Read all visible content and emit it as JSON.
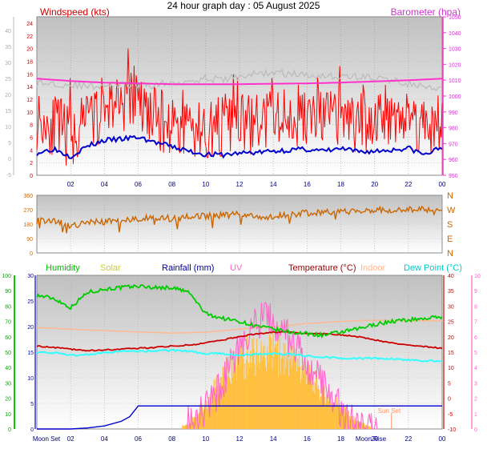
{
  "title": "24 hour graph day : 05 August 2025",
  "colors": {
    "wind": "#ff0000",
    "avg_wind": "#0000cc",
    "baro": "#ff33cc",
    "baro_line": "#cc44cc",
    "direction": "#cc6600",
    "humidity": "#00cc00",
    "solar": "#ffc040",
    "solar_text": "#cccc33",
    "rainfall": "#0000cc",
    "uv": "#ff66cc",
    "temperature": "#cc0000",
    "indoor": "#ffb890",
    "dewpoint": "#33ffff",
    "moon": "#ff9966"
  },
  "time_ticks": [
    "02",
    "04",
    "06",
    "08",
    "10",
    "12",
    "14",
    "16",
    "18",
    "20",
    "22",
    "00"
  ],
  "chart_data": [
    {
      "type": "line",
      "panel": "wind",
      "labels": {
        "left": "Windspeed (kts)",
        "right": "Barometer (hpa)"
      },
      "left_ticks": [
        "24",
        "22",
        "20",
        "18",
        "16",
        "14",
        "12",
        "10",
        "8",
        "6",
        "4",
        "2",
        "0"
      ],
      "left_range": [
        0,
        25
      ],
      "outer_ticks": [
        "40",
        "35",
        "30",
        "25",
        "20",
        "15",
        "10",
        "5",
        "0",
        "-5"
      ],
      "right_ticks": [
        "1050",
        "1040",
        "1030",
        "1020",
        "1010",
        "1000",
        "990",
        "980",
        "970",
        "960",
        "950"
      ],
      "right_range": [
        950,
        1050
      ],
      "x_range_hours": [
        0,
        24
      ],
      "series": [
        {
          "name": "Windspeed",
          "x": [
            0,
            1,
            2,
            3,
            4,
            5,
            6,
            7,
            8,
            9,
            10,
            11,
            12,
            13,
            14,
            15,
            16,
            17,
            18,
            19,
            20,
            21,
            22,
            23,
            24
          ],
          "y": [
            9,
            8,
            6,
            8,
            11,
            12,
            11,
            9,
            8,
            7,
            7,
            8,
            8,
            8,
            9,
            9,
            9,
            9,
            9,
            8,
            9,
            10,
            9,
            8,
            8
          ]
        },
        {
          "name": "Average wind",
          "x": [
            0,
            1,
            2,
            3,
            4,
            5,
            6,
            7,
            8,
            9,
            10,
            11,
            12,
            13,
            14,
            15,
            16,
            17,
            18,
            19,
            20,
            21,
            22,
            23,
            24
          ],
          "y": [
            3.5,
            4.2,
            3.0,
            4.6,
            5.5,
            5.7,
            6.0,
            5.2,
            4.5,
            3.8,
            3.3,
            3.2,
            3.5,
            3.6,
            3.8,
            4.0,
            4.1,
            3.8,
            4.2,
            3.7,
            3.8,
            4.0,
            4.3,
            3.2,
            4.5
          ]
        },
        {
          "name": "Gust trace",
          "x": [
            0,
            1,
            2,
            3,
            4,
            5,
            6,
            7,
            8,
            9,
            10,
            11,
            12,
            13,
            14,
            15,
            16,
            17,
            18,
            19,
            20,
            21,
            22,
            23,
            24
          ],
          "y": [
            14.5,
            14.5,
            14.3,
            14.0,
            14.2,
            14.3,
            14.0,
            14.3,
            14.5,
            15.0,
            15.3,
            15.0,
            15.6,
            16.0,
            16.2,
            16.0,
            15.8,
            15.8,
            15.5,
            15.6,
            15.3,
            15.0,
            14.5,
            13.8,
            13.4
          ]
        },
        {
          "name": "Barometer",
          "x": [
            0,
            2,
            4,
            6,
            8,
            10,
            12,
            14,
            16,
            18,
            20,
            22,
            24
          ],
          "y": [
            1011,
            1009.5,
            1008.5,
            1008,
            1007.5,
            1007.5,
            1007.5,
            1007.8,
            1008,
            1008.5,
            1009.2,
            1010,
            1011
          ]
        }
      ]
    },
    {
      "type": "line",
      "panel": "direction",
      "left_ticks": [
        "360",
        "270",
        "180",
        "90",
        "0"
      ],
      "y_range": [
        0,
        360
      ],
      "compass": [
        "N",
        "W",
        "S",
        "E",
        "N"
      ],
      "series": [
        {
          "name": "Wind direction",
          "x": [
            0,
            1,
            2,
            3,
            4,
            5,
            6,
            7,
            8,
            9,
            10,
            11,
            12,
            13,
            14,
            15,
            16,
            17,
            18,
            19,
            20,
            21,
            22,
            23,
            24
          ],
          "y": [
            200,
            205,
            165,
            190,
            195,
            205,
            215,
            220,
            215,
            225,
            230,
            235,
            240,
            225,
            225,
            240,
            250,
            255,
            255,
            265,
            270,
            265,
            270,
            270,
            250
          ]
        }
      ]
    },
    {
      "type": "area",
      "panel": "multi",
      "labels": [
        "Humidity",
        "Solar",
        "Rainfall (mm)",
        "UV",
        "Temperature (°C)",
        "Indoor",
        "Dew Point (°C)"
      ],
      "humidity_ticks": [
        "100",
        "90",
        "80",
        "70",
        "60",
        "50",
        "40",
        "30",
        "20",
        "10",
        "0"
      ],
      "rain_ticks": [
        "30",
        "25",
        "20",
        "15",
        "10",
        "5",
        "0"
      ],
      "temp_ticks": [
        "40",
        "35",
        "30",
        "25",
        "20",
        "15",
        "10",
        "5",
        "0",
        "-5",
        "-10"
      ],
      "uv_ticks": [
        "10",
        "9",
        "8",
        "7",
        "6",
        "5",
        "4",
        "3",
        "2",
        "1",
        "0"
      ],
      "annotations": [
        "Moon Set",
        "Moon Rise",
        "Sun Set"
      ],
      "series": [
        {
          "name": "Humidity",
          "x": [
            0,
            1,
            2,
            3,
            4,
            5,
            6,
            7,
            8,
            9,
            10,
            11,
            12,
            13,
            14,
            15,
            16,
            17,
            18,
            19,
            20,
            21,
            22,
            23,
            24
          ],
          "y": [
            87,
            85,
            79,
            89,
            91,
            92,
            93,
            92,
            92,
            89,
            75,
            72,
            70,
            67,
            65,
            63,
            62,
            61,
            63,
            65,
            68,
            70,
            71,
            72,
            73
          ]
        },
        {
          "name": "Temperature",
          "x": [
            0,
            1,
            2,
            3,
            4,
            5,
            6,
            7,
            8,
            9,
            10,
            11,
            12,
            13,
            14,
            15,
            16,
            17,
            18,
            19,
            20,
            21,
            22,
            23,
            24
          ],
          "y": [
            17,
            16.5,
            16,
            15.5,
            15.7,
            16,
            16.3,
            16.5,
            17,
            17.3,
            18,
            19,
            20,
            21,
            21.5,
            21.5,
            21,
            21,
            20.7,
            20,
            19,
            18,
            17.3,
            16.8,
            16.3
          ]
        },
        {
          "name": "Dew Point",
          "x": [
            0,
            1,
            2,
            3,
            4,
            5,
            6,
            7,
            8,
            9,
            10,
            11,
            12,
            13,
            14,
            15,
            16,
            17,
            18,
            19,
            20,
            21,
            22,
            23,
            24
          ],
          "y": [
            15,
            14.8,
            14,
            14.2,
            14.8,
            15.2,
            15.3,
            15.4,
            15.6,
            15.3,
            14.5,
            14.5,
            14,
            14.3,
            14.5,
            14.3,
            13.8,
            13.4,
            13,
            13,
            13,
            12.8,
            12.4,
            12.2,
            12
          ]
        },
        {
          "name": "Indoor",
          "x": [
            0,
            2,
            4,
            6,
            8,
            10,
            12,
            14,
            16,
            18,
            20,
            22,
            24
          ],
          "y": [
            23,
            22.5,
            22,
            21.6,
            21.2,
            21.5,
            22.5,
            23.3,
            24.3,
            25,
            25.4,
            25.2,
            25.2
          ]
        },
        {
          "name": "Solar",
          "x": [
            0,
            8,
            9,
            10,
            11,
            12,
            13,
            14,
            15,
            16,
            17,
            18,
            19,
            20,
            24
          ],
          "y": [
            0,
            0,
            40,
            220,
            420,
            560,
            620,
            620,
            560,
            440,
            300,
            170,
            60,
            0,
            0
          ]
        },
        {
          "name": "UV",
          "x": [
            0,
            8,
            9,
            10,
            11,
            12,
            13,
            14,
            15,
            16,
            17,
            18,
            19,
            20,
            24
          ],
          "y": [
            0,
            0,
            0.3,
            1.3,
            3.0,
            5.2,
            7.0,
            7.0,
            5.8,
            4.2,
            2.6,
            1.2,
            0.3,
            0,
            0
          ]
        },
        {
          "name": "Rainfall",
          "x": [
            0,
            2,
            3,
            4,
            5,
            5.5,
            6,
            24
          ],
          "y": [
            0,
            0,
            0.2,
            0.6,
            1.5,
            2.4,
            4.5,
            4.5
          ]
        }
      ]
    }
  ]
}
